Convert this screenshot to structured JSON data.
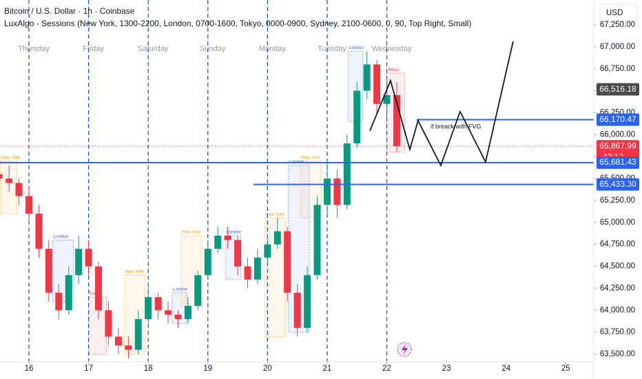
{
  "chart_data": {
    "type": "candlestick",
    "title": "Bitcoin / U.S. Dollar · 1h · Coinbase",
    "subtitle": "LuxAlgo - Sessions (New York, 1300-2200, London, 0700-1600, Tokyo, 0000-0900, Sydney, 2100-0600, 0, 90, Top Right, Small)",
    "currency_button": "USD",
    "annotation": "if breack with FVG",
    "countdown": "42:12",
    "xlim": [
      15.515,
      25.47
    ],
    "ylim": [
      63414,
      67533
    ],
    "xticks": [
      16,
      17,
      18,
      19,
      20,
      21,
      22,
      23,
      24,
      25
    ],
    "weekdays": [
      "Thursday",
      "Friday",
      "Saturday",
      "Sunday",
      "Monday",
      "Tuesday",
      "Wednesday"
    ],
    "yticks": [
      {
        "value": 63500,
        "label": "63,500.00"
      },
      {
        "value": 63750,
        "label": "63,750.00"
      },
      {
        "value": 64000,
        "label": "64,000.00"
      },
      {
        "value": 64250,
        "label": "64,250.00"
      },
      {
        "value": 64500,
        "label": "64,500.00"
      },
      {
        "value": 64750,
        "label": "64,750.00"
      },
      {
        "value": 65000,
        "label": "65,000.00"
      },
      {
        "value": 65250,
        "label": "65,250.00"
      },
      {
        "value": 65500,
        "label": "65,500.00"
      },
      {
        "value": 65750,
        "label": "65,750.00"
      },
      {
        "value": 66000,
        "label": "66,000.00"
      },
      {
        "value": 66250,
        "label": "66,250.00"
      },
      {
        "value": 66500,
        "label": "66,500.00"
      },
      {
        "value": 66750,
        "label": "66,750.00"
      },
      {
        "value": 67000,
        "label": "67,000.00"
      },
      {
        "value": 67250,
        "label": "67,250.00"
      }
    ],
    "up_color": "#089981",
    "down_color": "#f23645",
    "x": [
      15.5,
      15.667,
      15.833,
      16.0,
      16.167,
      16.333,
      16.5,
      16.667,
      16.833,
      17.0,
      17.167,
      17.333,
      17.5,
      17.667,
      17.833,
      18.0,
      18.167,
      18.333,
      18.5,
      18.667,
      18.833,
      19.0,
      19.167,
      19.333,
      19.5,
      19.667,
      19.833,
      20.0,
      20.167,
      20.333,
      20.5,
      20.667,
      20.833,
      21.0,
      21.167,
      21.333,
      21.5,
      21.667,
      21.833,
      22.0,
      22.167
    ],
    "open": [
      65550,
      65500,
      65450,
      65300,
      65100,
      64700,
      64200,
      64000,
      64400,
      64700,
      64500,
      64000,
      63700,
      63600,
      63550,
      63900,
      64150,
      64000,
      63950,
      63900,
      64050,
      64400,
      64700,
      64850,
      64800,
      64500,
      64350,
      64600,
      64750,
      64900,
      64200,
      63800,
      64400,
      65200,
      65500,
      65200,
      65900,
      66500,
      66800,
      66350,
      66450
    ],
    "high": [
      65700,
      65650,
      65500,
      65400,
      65200,
      64800,
      64300,
      64500,
      64850,
      64800,
      64550,
      64100,
      63800,
      63700,
      64000,
      64300,
      64200,
      64100,
      64000,
      64150,
      64450,
      64800,
      64950,
      64950,
      64850,
      64600,
      64700,
      64850,
      65050,
      64950,
      64300,
      64500,
      65300,
      65700,
      65600,
      66000,
      66600,
      66950,
      66850,
      66650,
      66600
    ],
    "low": [
      65400,
      65350,
      65200,
      65000,
      64600,
      64100,
      63900,
      63950,
      64300,
      64400,
      63900,
      63600,
      63500,
      63450,
      63500,
      63850,
      63900,
      63850,
      63800,
      63850,
      64000,
      64350,
      64650,
      64700,
      64400,
      64250,
      64300,
      64500,
      64700,
      64100,
      63700,
      63750,
      64350,
      65100,
      65050,
      65150,
      65850,
      66400,
      66250,
      66200,
      65800
    ],
    "close": [
      65500,
      65450,
      65300,
      65100,
      64700,
      64200,
      64000,
      64400,
      64700,
      64500,
      64000,
      63700,
      63600,
      63550,
      63900,
      64150,
      64000,
      63950,
      63900,
      64050,
      64400,
      64700,
      64850,
      64800,
      64500,
      64350,
      64600,
      64750,
      64900,
      64200,
      63800,
      64400,
      65200,
      65500,
      65200,
      65900,
      66500,
      66800,
      66350,
      66450,
      65870
    ],
    "session_colors": {
      "New York": "#ff9800",
      "London": "#2962ff",
      "Tokyo": "#f23645"
    },
    "sessions": [
      {
        "name": "New York",
        "start": 15.52,
        "end": 15.8,
        "low": 65100,
        "high": 65700
      },
      {
        "name": "London",
        "start": 16.4,
        "end": 16.75,
        "low": 64100,
        "high": 64800
      },
      {
        "name": "Tokyo",
        "start": 17.0,
        "end": 17.3,
        "low": 63500,
        "high": 64150
      },
      {
        "name": "New York",
        "start": 17.6,
        "end": 17.95,
        "low": 63500,
        "high": 64400
      },
      {
        "name": "London",
        "start": 18.4,
        "end": 18.65,
        "low": 63850,
        "high": 64200
      },
      {
        "name": "New York",
        "start": 18.55,
        "end": 18.9,
        "low": 64050,
        "high": 64850
      },
      {
        "name": "London",
        "start": 19.3,
        "end": 19.55,
        "low": 64350,
        "high": 64850
      },
      {
        "name": "New York",
        "start": 19.95,
        "end": 20.3,
        "low": 63700,
        "high": 65050
      },
      {
        "name": "London",
        "start": 20.35,
        "end": 20.7,
        "low": 63750,
        "high": 65650
      },
      {
        "name": "New York",
        "start": 20.55,
        "end": 20.9,
        "low": 65050,
        "high": 65700
      },
      {
        "name": "London",
        "start": 21.35,
        "end": 21.6,
        "low": 66150,
        "high": 66950
      },
      {
        "name": "Tokyo",
        "start": 22.0,
        "end": 22.3,
        "low": 65800,
        "high": 66700
      }
    ],
    "session_lines": [
      16,
      17,
      18,
      19,
      20,
      21,
      22
    ],
    "levels": [
      {
        "value": 66170.47,
        "start": 22.5,
        "color": "#2962ff"
      },
      {
        "value": 65681.43,
        "start": 15.515,
        "color": "#2962ff"
      },
      {
        "value": 65433.3,
        "start": 19.765,
        "color": "#2962ff"
      }
    ],
    "projection": {
      "x": [
        21.716,
        22.062,
        22.386,
        22.524,
        22.905,
        23.229,
        23.656,
        24.118
      ],
      "values": [
        66043,
        66615,
        65831,
        66160,
        65650,
        66262,
        65689,
        67063
      ]
    },
    "price_tags": [
      {
        "value": 66516.18,
        "label": "66,516.18",
        "color": "#4a4a4a"
      },
      {
        "value": 66170.47,
        "label": "66,170.47",
        "color": "#2962ff"
      },
      {
        "value": 65867.99,
        "label": "65,867.99",
        "color": "#f23645"
      },
      {
        "value": 65681.43,
        "label": "65,681.43",
        "color": "#2962ff"
      },
      {
        "value": 65433.3,
        "label": "65,433.30",
        "color": "#2962ff"
      }
    ]
  }
}
